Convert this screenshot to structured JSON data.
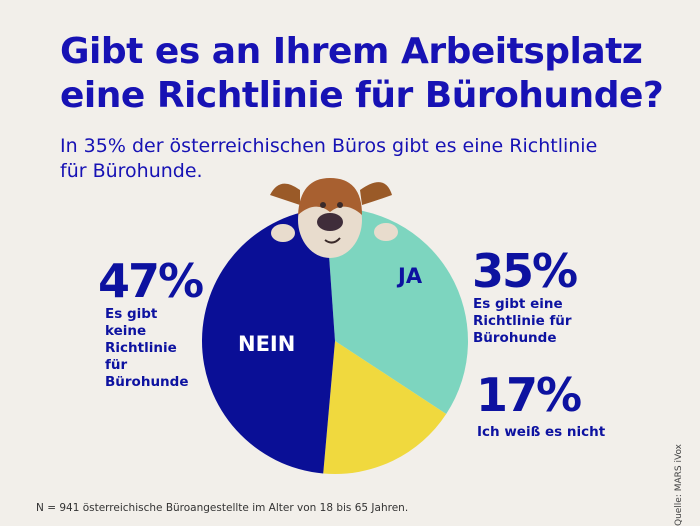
{
  "title": "Gibt es an Ihrem Arbeitsplatz eine Richtlinie für Bürohunde?",
  "subtitle": "In 35% der österreichischen Büros gibt es eine Richtlinie für Bürohunde.",
  "chart_data": {
    "type": "pie",
    "slices": [
      {
        "label": "JA",
        "value": 35,
        "percent_label": "35%",
        "description": "Es gibt eine Richtlinie für Bürohunde",
        "color": "#7dd5bf"
      },
      {
        "label": "",
        "value": 17,
        "percent_label": "17%",
        "description": "Ich weiß es nicht",
        "color": "#f0d93e"
      },
      {
        "label": "NEIN",
        "value": 47,
        "percent_label": "47%",
        "description": "Es gibt keine Richtlinie für Bürohunde",
        "color": "#0a0f96"
      }
    ]
  },
  "footnote": "N = 941 österreichische Büroangestellte im Alter von 18 bis 65 Jahren.",
  "source": "Quelle: MARS iVox",
  "illustration": "dog-icon"
}
